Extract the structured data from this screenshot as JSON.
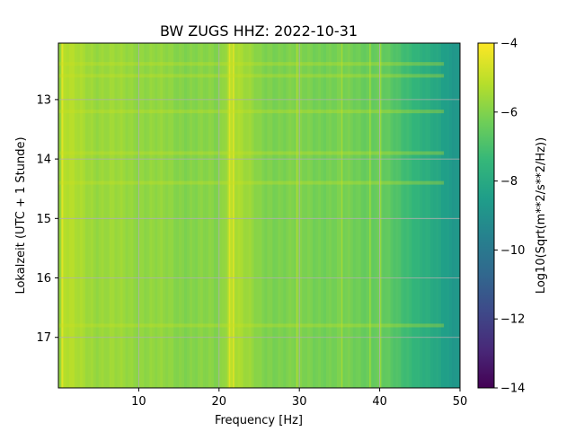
{
  "chart_data": {
    "type": "heatmap",
    "title": "BW ZUGS  HHZ: 2022-10-31",
    "xlabel": "Frequency [Hz]",
    "ylabel": "Lokalzeit (UTC + 1 Stunde)",
    "xlim": [
      0,
      50
    ],
    "ylim": [
      12.05,
      17.85
    ],
    "y_inverted": true,
    "xticks": [
      10,
      20,
      30,
      40,
      50
    ],
    "xtick_labels": [
      "10",
      "20",
      "30",
      "40",
      "50"
    ],
    "yticks": [
      13,
      14,
      15,
      16,
      17
    ],
    "ytick_labels": [
      "13",
      "14",
      "15",
      "16",
      "17"
    ],
    "grid": true,
    "colormap": "viridis",
    "colorbar": {
      "label": "Log10(Sqrt(m**2/s**2/Hz))",
      "range": [
        -14,
        -4
      ],
      "ticks": [
        -4,
        -6,
        -8,
        -10,
        -12,
        -14
      ],
      "tick_labels": [
        "−4",
        "−6",
        "−8",
        "−10",
        "−12",
        "−14"
      ]
    },
    "spectral_profile": {
      "freq_hz": [
        0,
        0.5,
        5,
        10,
        15,
        20,
        21.5,
        25,
        30,
        35,
        40,
        42,
        44,
        46,
        48,
        50
      ],
      "log10_amplitude": [
        -6.0,
        -5.2,
        -5.6,
        -5.7,
        -5.9,
        -6.0,
        -5.1,
        -6.0,
        -6.1,
        -6.2,
        -6.4,
        -6.9,
        -7.3,
        -7.9,
        -8.4,
        -8.8
      ]
    },
    "vertical_lines_hz": [
      0.5,
      21.3,
      21.8,
      29.7,
      35.3,
      38.8,
      40.1
    ],
    "horizontal_bands_hours": [
      12.4,
      12.6,
      13.2,
      13.9,
      14.4,
      16.8
    ]
  }
}
